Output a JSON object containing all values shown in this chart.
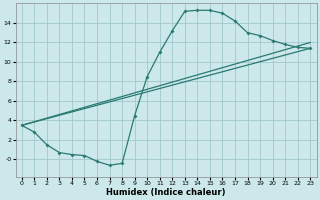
{
  "xlabel": "Humidex (Indice chaleur)",
  "bg_color": "#cce8ea",
  "grid_color": "#a0c8cb",
  "line_color": "#2a7a72",
  "xlim": [
    -0.5,
    23.5
  ],
  "ylim": [
    -1.8,
    16.0
  ],
  "xticks": [
    0,
    1,
    2,
    3,
    4,
    5,
    6,
    7,
    8,
    9,
    10,
    11,
    12,
    13,
    14,
    15,
    16,
    17,
    18,
    19,
    20,
    21,
    22,
    23
  ],
  "yticks": [
    0,
    2,
    4,
    6,
    8,
    10,
    12,
    14
  ],
  "curve1_x": [
    0,
    1,
    2,
    3,
    4,
    5,
    6,
    7,
    8,
    9,
    10,
    11,
    12,
    13,
    14,
    15,
    16,
    17,
    18,
    19,
    20,
    21,
    22,
    23
  ],
  "curve1_y": [
    3.5,
    2.8,
    1.5,
    0.7,
    0.5,
    0.4,
    -0.2,
    -0.6,
    -0.4,
    4.5,
    8.5,
    11.0,
    13.2,
    15.2,
    15.3,
    15.3,
    15.0,
    14.2,
    13.0,
    12.7,
    12.2,
    11.8,
    11.5,
    11.4
  ],
  "curve2_x": [
    0,
    23
  ],
  "curve2_y": [
    3.5,
    12.0
  ],
  "curve3_x": [
    0,
    23
  ],
  "curve3_y": [
    3.5,
    11.4
  ]
}
